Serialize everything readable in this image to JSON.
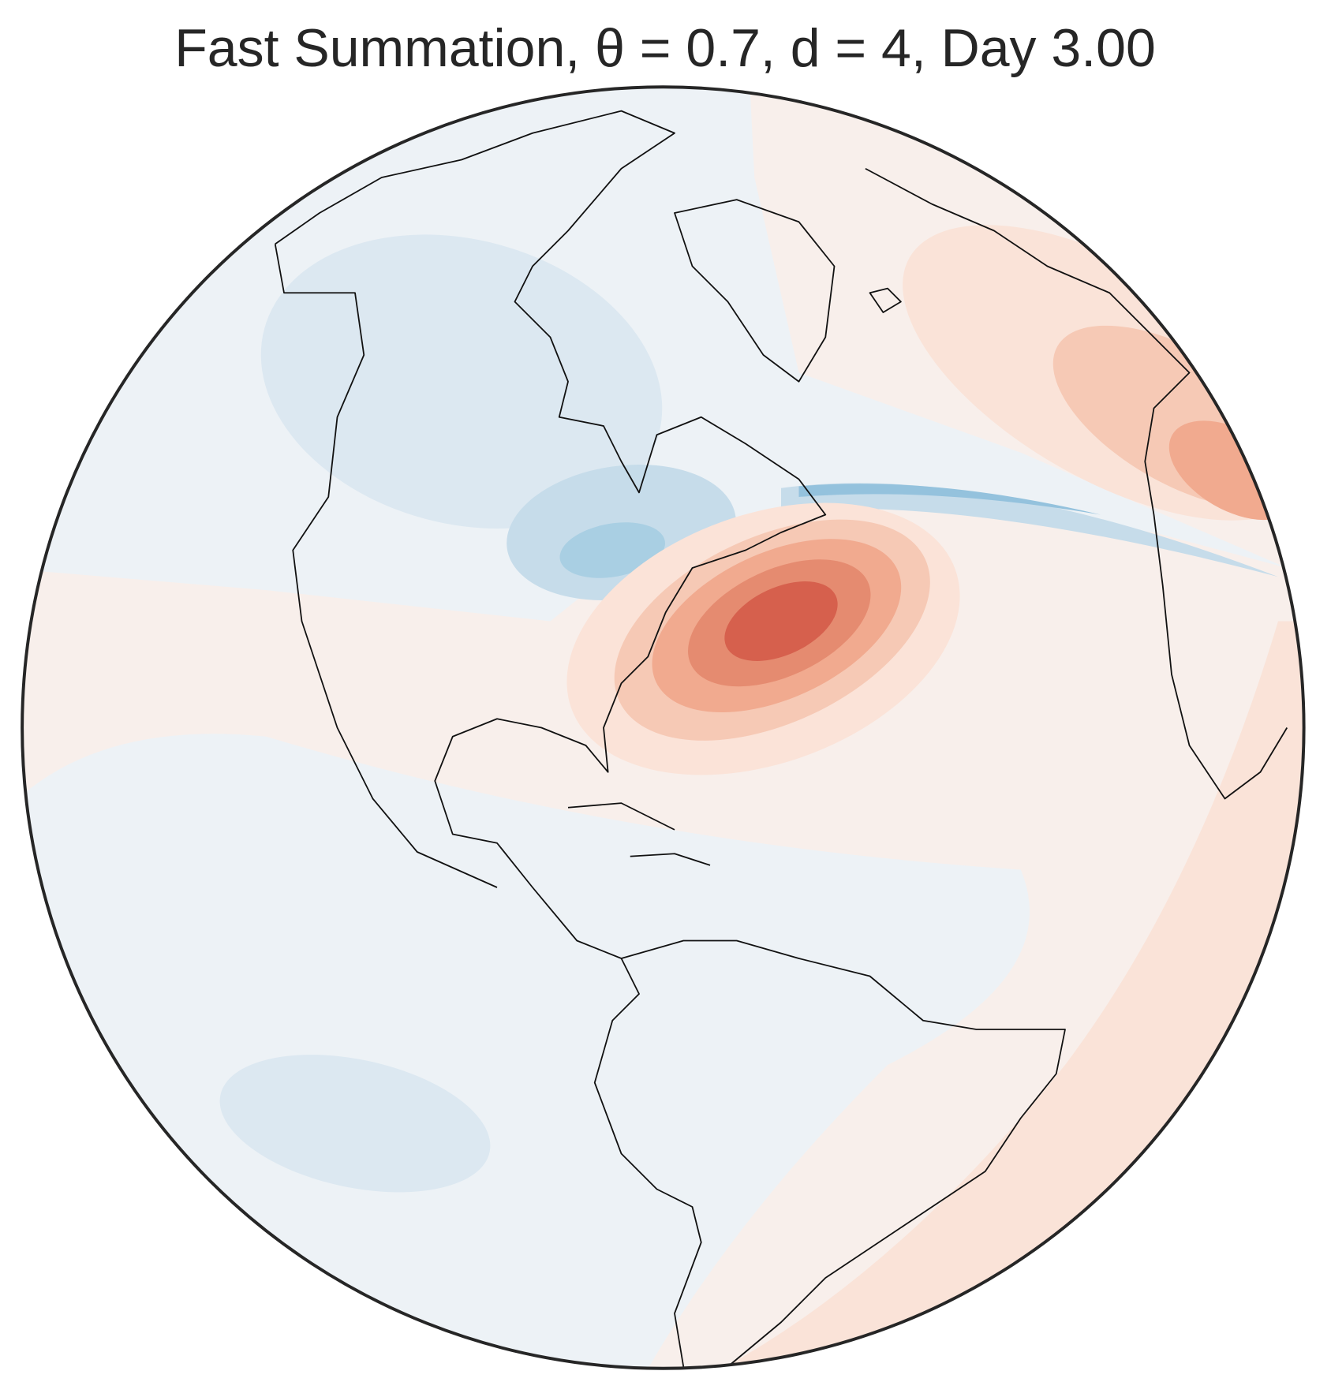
{
  "title": "Fast Summation, θ = 0.7, d = 4, Day 3.00"
}
